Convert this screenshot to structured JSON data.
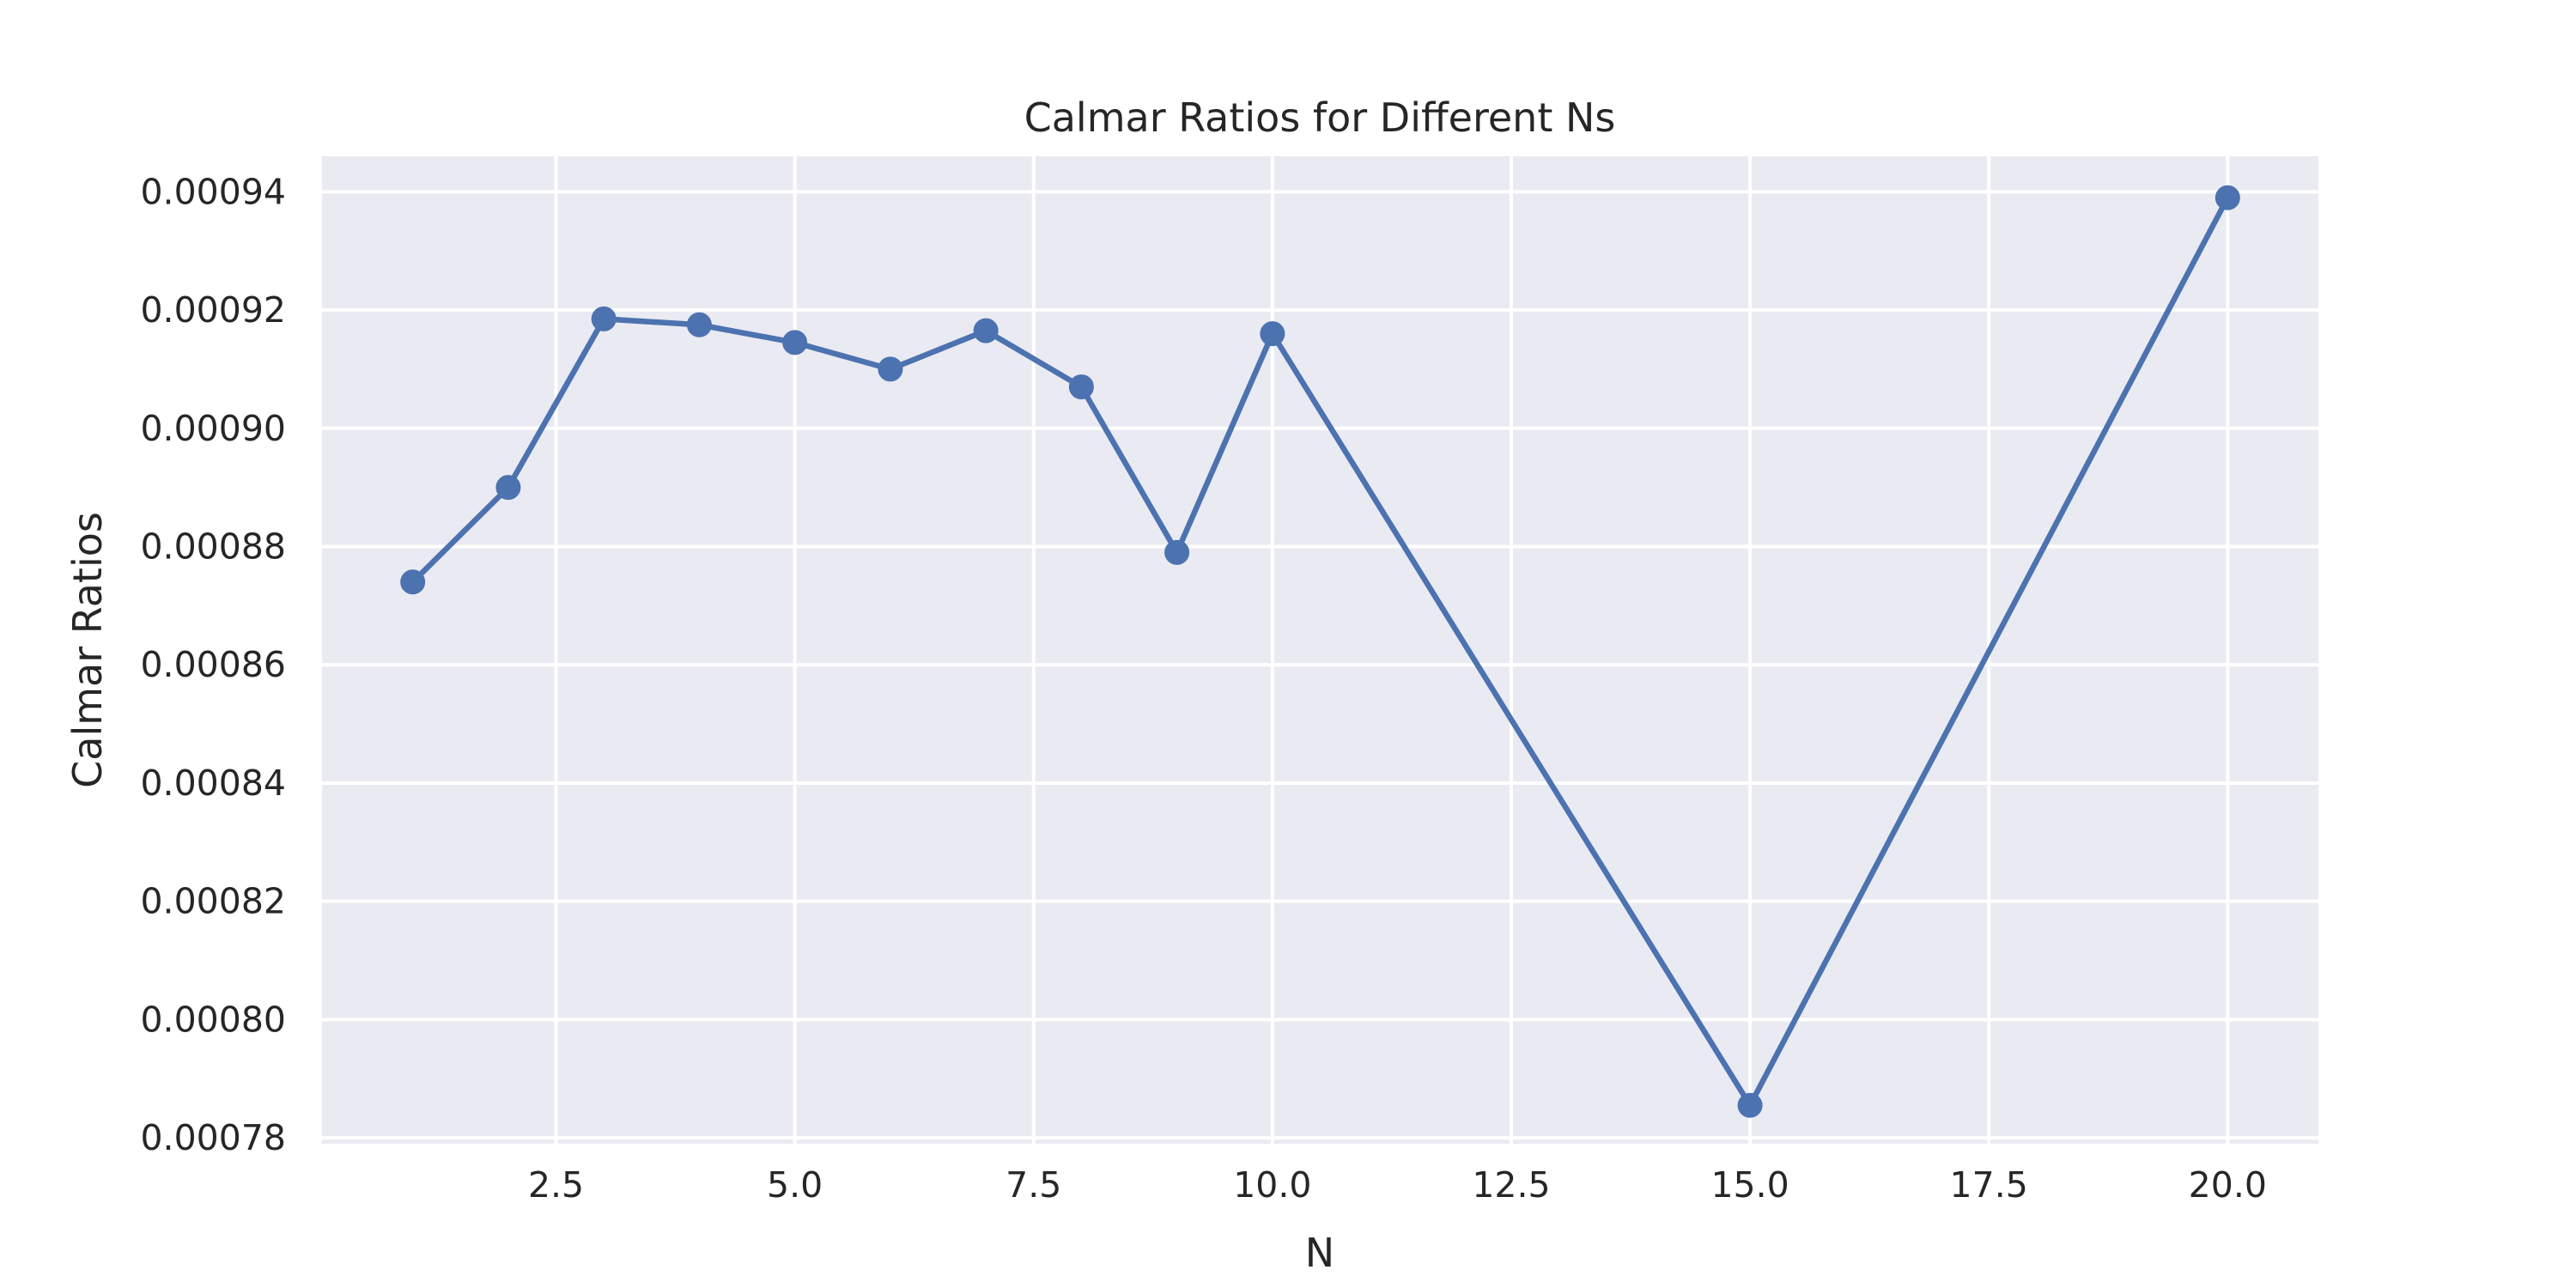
{
  "chart_data": {
    "type": "line",
    "title": "Calmar Ratios for Different Ns",
    "xlabel": "N",
    "ylabel": "Calmar Ratios",
    "xlim": [
      0.05,
      20.95
    ],
    "ylim": [
      0.000779,
      0.000946
    ],
    "xticks": [
      2.5,
      5.0,
      7.5,
      10.0,
      12.5,
      15.0,
      17.5,
      20.0
    ],
    "xtick_labels": [
      "2.5",
      "5.0",
      "7.5",
      "10.0",
      "12.5",
      "15.0",
      "17.5",
      "20.0"
    ],
    "yticks": [
      0.00078,
      0.0008,
      0.00082,
      0.00084,
      0.00086,
      0.00088,
      0.0009,
      0.00092,
      0.00094
    ],
    "ytick_labels": [
      "0.00078",
      "0.00080",
      "0.00082",
      "0.00084",
      "0.00086",
      "0.00088",
      "0.00090",
      "0.00092",
      "0.00094"
    ],
    "grid": true,
    "background_color": "#EAEAF2",
    "series": [
      {
        "color": "#4C72B0",
        "marker": "circle",
        "x": [
          1,
          2,
          3,
          4,
          5,
          6,
          7,
          8,
          9,
          10,
          15,
          20
        ],
        "y": [
          0.000874,
          0.00089,
          0.0009185,
          0.0009175,
          0.0009145,
          0.00091,
          0.0009165,
          0.000907,
          0.000879,
          0.000916,
          0.0007855,
          0.000939
        ]
      }
    ]
  }
}
